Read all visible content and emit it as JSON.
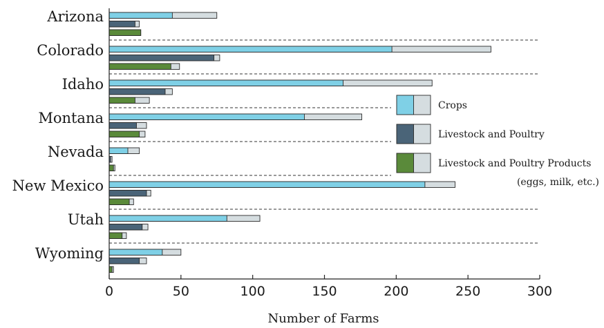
{
  "chart_data": {
    "type": "bar",
    "orientation": "horizontal",
    "grouped": true,
    "stacked_segments": true,
    "categories": [
      "Arizona",
      "Colorado",
      "Idaho",
      "Montana",
      "Nevada",
      "New Mexico",
      "Utah",
      "Wyoming"
    ],
    "series": [
      {
        "name": "Crops",
        "color": "#7fd0e6",
        "values": [
          44,
          197,
          163,
          136,
          13,
          220,
          82,
          37
        ],
        "totals": [
          75,
          266,
          225,
          176,
          21,
          241,
          105,
          50
        ]
      },
      {
        "name": "Livestock and Poultry",
        "color": "#4a6478",
        "values": [
          18,
          73,
          39,
          19,
          1,
          26,
          23,
          21
        ],
        "totals": [
          21,
          77,
          44,
          26,
          2,
          29,
          27,
          26
        ]
      },
      {
        "name": "Livestock and Poultry Products",
        "note": "(eggs, milk, etc.)",
        "color": "#5a8a3a",
        "values": [
          22,
          43,
          18,
          21,
          3,
          14,
          9,
          2
        ],
        "totals": [
          22,
          49,
          28,
          25,
          4,
          17,
          12,
          3
        ]
      }
    ],
    "remainder_color": "#d5dde0",
    "xlabel": "Number of Farms",
    "xlim": [
      0,
      300
    ],
    "xticks": [
      0,
      50,
      100,
      150,
      200,
      250,
      300
    ],
    "legend_position": "right",
    "grid": false
  }
}
